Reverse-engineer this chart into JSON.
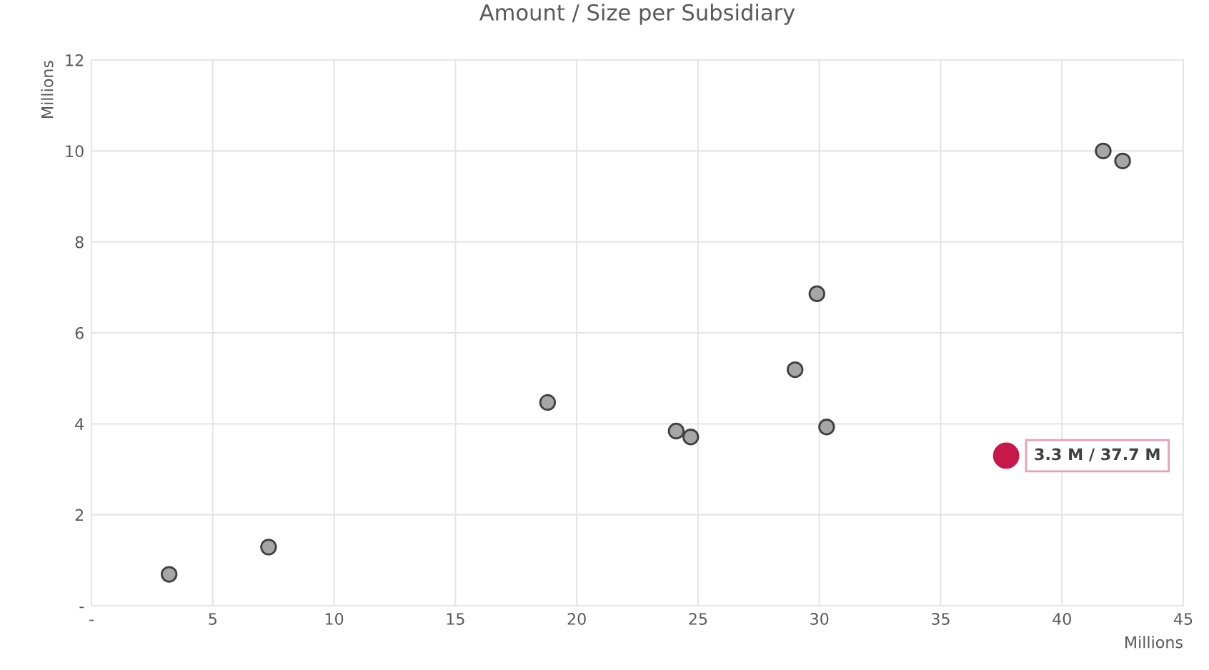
{
  "chart_data": {
    "type": "scatter",
    "title": "Amount / Size per Subsidiary",
    "xlabel": "Millions",
    "ylabel": "Millions",
    "xlim": [
      0,
      45
    ],
    "xticks": [
      {
        "value": 0,
        "label": "-"
      },
      5,
      10,
      15,
      20,
      25,
      30,
      35,
      40,
      45
    ],
    "ylim": [
      0,
      12
    ],
    "yticks": [
      {
        "value": 0,
        "label": "-"
      },
      2,
      4,
      6,
      8,
      10,
      12
    ],
    "grid": true,
    "marker": "circle",
    "legend": false,
    "series": [
      {
        "color": "#a6a6a6",
        "x": [
          3.2,
          7.3,
          18.8,
          24.1,
          24.7,
          29.0,
          29.9,
          30.3,
          41.7,
          42.5
        ],
        "values": [
          0.69,
          1.29,
          4.47,
          3.84,
          3.71,
          5.19,
          6.86,
          3.93,
          10.0,
          9.78
        ]
      },
      {
        "color": "#c8174a",
        "x": [
          37.7
        ],
        "values": [
          3.3
        ]
      }
    ],
    "annotations": [
      {
        "text": "3.3 M / 37.7 M",
        "x": 37.7,
        "y": 3.3
      }
    ]
  }
}
